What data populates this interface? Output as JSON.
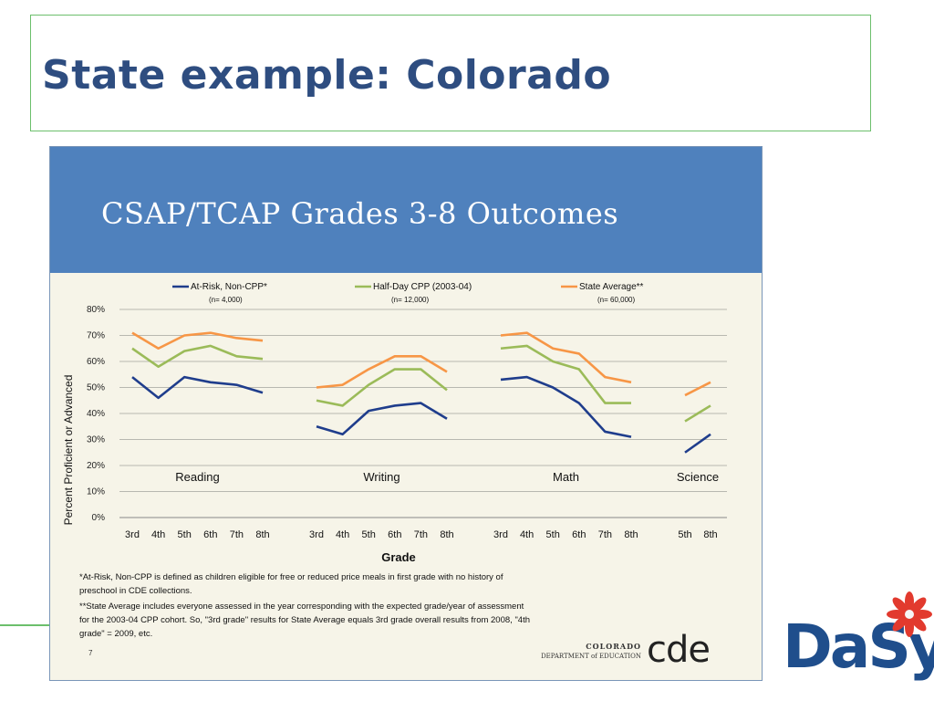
{
  "slide_title": "State example:  Colorado",
  "inner_title": "CSAP/TCAP Grades 3-8 Outcomes",
  "footnotes": [
    "*At-Risk, Non-CPP is defined as children eligible for free or reduced price meals in first grade with no history of",
    "preschool in CDE collections.",
    "**State Average includes everyone assessed in the year corresponding with the expected grade/year of assessment",
    "for the 2003-04 CPP cohort. So, \"3rd grade\" results for State Average equals 3rd grade overall results from 2008, \"4th",
    "grade\" = 2009, etc."
  ],
  "page_number": "7",
  "cde_logo": {
    "line1": "COLORADO",
    "line2": "DEPARTMENT of EDUCATION",
    "big": "cde"
  },
  "dasy_logo": "DaSy",
  "colors": {
    "series1": "#1f3d8c",
    "series2": "#9bbb59",
    "series3": "#f79646",
    "header": "#4f81bd",
    "slide_bg": "#f6f4e8"
  },
  "chart_data": {
    "type": "line",
    "title": "",
    "xlabel": "Grade",
    "ylabel": "Percent Proficient or Advanced",
    "ylim": [
      0,
      80
    ],
    "yticks": [
      "0%",
      "10%",
      "20%",
      "30%",
      "40%",
      "50%",
      "60%",
      "70%",
      "80%"
    ],
    "grid": true,
    "legend_position": "top",
    "legend": [
      {
        "name": "At-Risk, Non-CPP*",
        "n": "(n= 4,000)"
      },
      {
        "name": "Half-Day CPP (2003-04)",
        "n": "(n= 12,000)"
      },
      {
        "name": "State Average**",
        "n": "(n= 60,000)"
      }
    ],
    "groups": [
      {
        "name": "Reading",
        "categories": [
          "3rd",
          "4th",
          "5th",
          "6th",
          "7th",
          "8th"
        ],
        "series": [
          {
            "name": "At-Risk, Non-CPP*",
            "values": [
              54,
              46,
              54,
              52,
              51,
              48
            ]
          },
          {
            "name": "Half-Day CPP (2003-04)",
            "values": [
              65,
              58,
              64,
              66,
              62,
              61
            ]
          },
          {
            "name": "State Average**",
            "values": [
              71,
              65,
              70,
              71,
              69,
              68
            ]
          }
        ]
      },
      {
        "name": "Writing",
        "categories": [
          "3rd",
          "4th",
          "5th",
          "6th",
          "7th",
          "8th"
        ],
        "series": [
          {
            "name": "At-Risk, Non-CPP*",
            "values": [
              35,
              32,
              41,
              43,
              44,
              38
            ]
          },
          {
            "name": "Half-Day CPP (2003-04)",
            "values": [
              45,
              43,
              51,
              57,
              57,
              49
            ]
          },
          {
            "name": "State Average**",
            "values": [
              50,
              51,
              57,
              62,
              62,
              56
            ]
          }
        ]
      },
      {
        "name": "Math",
        "categories": [
          "3rd",
          "4th",
          "5th",
          "6th",
          "7th",
          "8th"
        ],
        "series": [
          {
            "name": "At-Risk, Non-CPP*",
            "values": [
              53,
              54,
              50,
              44,
              33,
              31
            ]
          },
          {
            "name": "Half-Day CPP (2003-04)",
            "values": [
              65,
              66,
              60,
              57,
              44,
              44
            ]
          },
          {
            "name": "State Average**",
            "values": [
              70,
              71,
              65,
              63,
              54,
              52
            ]
          }
        ]
      },
      {
        "name": "Science",
        "categories": [
          "5th",
          "8th"
        ],
        "series": [
          {
            "name": "At-Risk, Non-CPP*",
            "values": [
              25,
              32
            ]
          },
          {
            "name": "Half-Day CPP (2003-04)",
            "values": [
              37,
              43
            ]
          },
          {
            "name": "State Average**",
            "values": [
              47,
              52
            ]
          }
        ]
      }
    ]
  }
}
